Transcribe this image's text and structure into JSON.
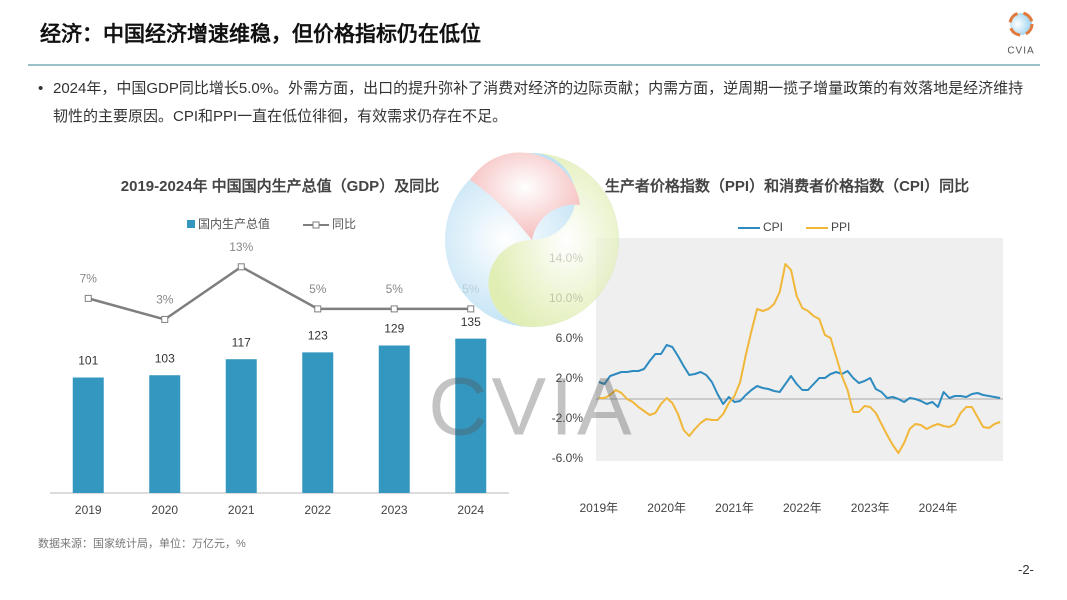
{
  "header": {
    "title": "经济：中国经济增速维稳，但价格指标仍在低位",
    "logo_text": "CVIA"
  },
  "bullet": "2024年，中国GDP同比增长5.0%。外需方面，出口的提升弥补了消费对经济的边际贡献；内需方面，逆周期一揽子增量政策的有效落地是经济维持韧性的主要原因。CPI和PPI一直在低位徘徊，有效需求仍存在不足。",
  "watermark": "CVIA",
  "source": "数据来源：国家统计局，单位：万亿元，%",
  "page_number": "-2-",
  "chart_data": [
    {
      "type": "bar_line",
      "title": "2019-2024年 中国国内生产总值（GDP）及同比",
      "categories": [
        "2019",
        "2020",
        "2021",
        "2022",
        "2023",
        "2024"
      ],
      "ylim": [
        0,
        230
      ],
      "y2lim": [
        -30,
        20
      ],
      "series": [
        {
          "name": "国内生产总值",
          "type": "bar",
          "color": "#3497bf",
          "values": [
            101,
            103,
            117,
            123,
            129,
            135
          ]
        },
        {
          "name": "同比",
          "type": "line",
          "axis": "y2",
          "color": "#7f7f7f",
          "values": [
            7,
            3,
            13,
            5,
            5,
            5
          ],
          "value_labels": [
            "7%",
            "3%",
            "13%",
            "5%",
            "5%",
            "5%"
          ]
        }
      ]
    },
    {
      "type": "line",
      "title": "生产者价格指数（PPI）和消费者价格指数（CPI）同比",
      "categories": [
        "2019年",
        null,
        null,
        null,
        null,
        null,
        null,
        null,
        null,
        null,
        null,
        null,
        "2020年",
        null,
        null,
        null,
        null,
        null,
        null,
        null,
        null,
        null,
        null,
        null,
        "2021年",
        null,
        null,
        null,
        null,
        null,
        null,
        null,
        null,
        null,
        null,
        null,
        "2022年",
        null,
        null,
        null,
        null,
        null,
        null,
        null,
        null,
        null,
        null,
        null,
        "2023年",
        null,
        null,
        null,
        null,
        null,
        null,
        null,
        null,
        null,
        null,
        null,
        "2024年",
        null,
        null,
        null,
        null,
        null,
        null,
        null,
        null,
        null,
        null,
        null
      ],
      "ylim": [
        -6.2,
        16.1
      ],
      "yticks": [
        {
          "value": 14,
          "label": "14.0%"
        },
        {
          "value": 10,
          "label": "10.0%"
        },
        {
          "value": 6,
          "label": "6.0%"
        },
        {
          "value": 2,
          "label": "2.0%"
        },
        {
          "value": -2,
          "label": "-2.0%"
        },
        {
          "value": -6,
          "label": "-6.0%"
        }
      ],
      "series": [
        {
          "name": "CPI",
          "color": "#2e8bc0",
          "values": [
            1.7,
            1.5,
            2.3,
            2.5,
            2.7,
            2.7,
            2.8,
            2.8,
            3.0,
            3.8,
            4.5,
            4.5,
            5.4,
            5.2,
            4.3,
            3.3,
            2.4,
            2.5,
            2.7,
            2.4,
            1.7,
            0.5,
            -0.5,
            0.2,
            -0.3,
            -0.2,
            0.4,
            0.9,
            1.3,
            1.1,
            1.0,
            0.8,
            0.7,
            1.5,
            2.3,
            1.5,
            0.9,
            0.9,
            1.5,
            2.1,
            2.1,
            2.5,
            2.7,
            2.5,
            2.8,
            2.1,
            1.6,
            1.8,
            2.1,
            1.0,
            0.7,
            0.1,
            0.2,
            0.0,
            -0.3,
            0.1,
            0.0,
            -0.2,
            -0.5,
            -0.3,
            -0.8,
            0.7,
            0.1,
            0.3,
            0.3,
            0.2,
            0.5,
            0.6,
            0.4,
            0.3,
            0.2,
            0.1
          ]
        },
        {
          "name": "PPI",
          "color": "#f0b73a",
          "values": [
            0.1,
            0.1,
            0.4,
            0.9,
            0.6,
            0.0,
            -0.3,
            -0.8,
            -1.2,
            -1.6,
            -1.4,
            -0.5,
            0.1,
            -0.4,
            -1.5,
            -3.1,
            -3.7,
            -3.0,
            -2.4,
            -2.0,
            -2.1,
            -2.1,
            -1.5,
            -0.4,
            0.3,
            1.7,
            4.4,
            6.8,
            9.0,
            8.8,
            9.0,
            9.5,
            10.7,
            13.5,
            12.9,
            10.3,
            9.1,
            8.8,
            8.3,
            8.0,
            6.4,
            6.1,
            4.2,
            2.3,
            0.9,
            -1.3,
            -1.3,
            -0.7,
            -0.8,
            -1.4,
            -2.5,
            -3.6,
            -4.6,
            -5.4,
            -4.4,
            -3.0,
            -2.5,
            -2.6,
            -3.0,
            -2.7,
            -2.5,
            -2.7,
            -2.8,
            -2.5,
            -1.4,
            -0.8,
            -0.8,
            -1.8,
            -2.8,
            -2.9,
            -2.5,
            -2.3
          ]
        }
      ]
    }
  ]
}
